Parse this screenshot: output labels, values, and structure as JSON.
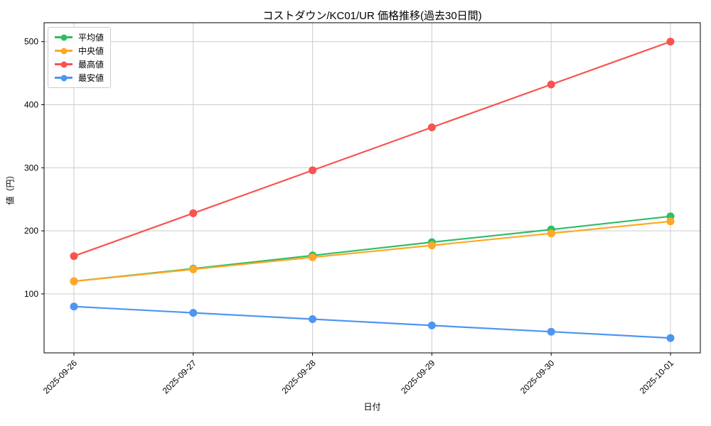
{
  "chart_data": {
    "type": "line",
    "title": "コストダウン/KC01/UR 価格推移(過去30日間)",
    "xlabel": "日付",
    "ylabel": "値（円）",
    "categories": [
      "2025-09-26",
      "2025-09-27",
      "2025-09-28",
      "2025-09-29",
      "2025-09-30",
      "2025-10-01"
    ],
    "series": [
      {
        "name": "平均値",
        "color": "#2DBE64",
        "values": [
          120,
          140,
          161,
          182,
          202,
          223
        ]
      },
      {
        "name": "中央値",
        "color": "#FFA726",
        "values": [
          120,
          139,
          158,
          177,
          196,
          215
        ]
      },
      {
        "name": "最高値",
        "color": "#F8534F",
        "values": [
          160,
          228,
          296,
          364,
          432,
          500
        ]
      },
      {
        "name": "最安値",
        "color": "#4E95F2",
        "values": [
          80,
          70,
          60,
          50,
          40,
          30
        ]
      }
    ],
    "yticks": [
      100,
      200,
      300,
      400,
      500
    ],
    "xlim": [
      -0.25,
      5.25
    ],
    "ylim": [
      6.5,
      530
    ],
    "grid": true,
    "grid_color": "#cccccc",
    "spine_color": "#000000",
    "background_color": "#ffffff",
    "legend_position": "upper left",
    "x_tick_rotation": 45
  }
}
